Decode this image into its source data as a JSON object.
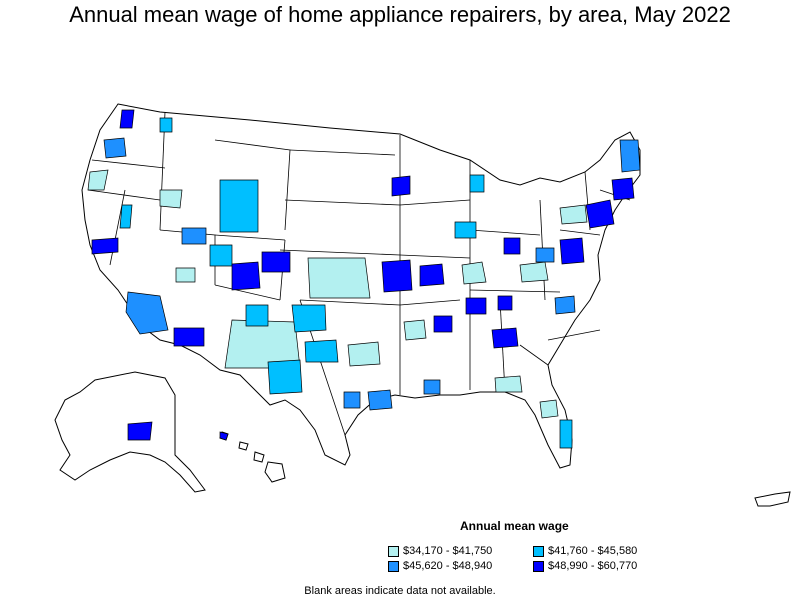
{
  "title": "Annual mean wage of home appliance repairers, by area, May 2022",
  "legend": {
    "title": "Annual mean wage",
    "items": [
      {
        "label": "$34,170 - $41,750",
        "color": "#b3f0f0"
      },
      {
        "label": "$41,760 - $45,580",
        "color": "#00bfff"
      },
      {
        "label": "$45,620 - $48,940",
        "color": "#1e90ff"
      },
      {
        "label": "$48,990 - $60,770",
        "color": "#0000ff"
      }
    ]
  },
  "note": "Blank areas indicate data not available.",
  "colors": {
    "border": "#000000",
    "no_data": "#ffffff"
  }
}
